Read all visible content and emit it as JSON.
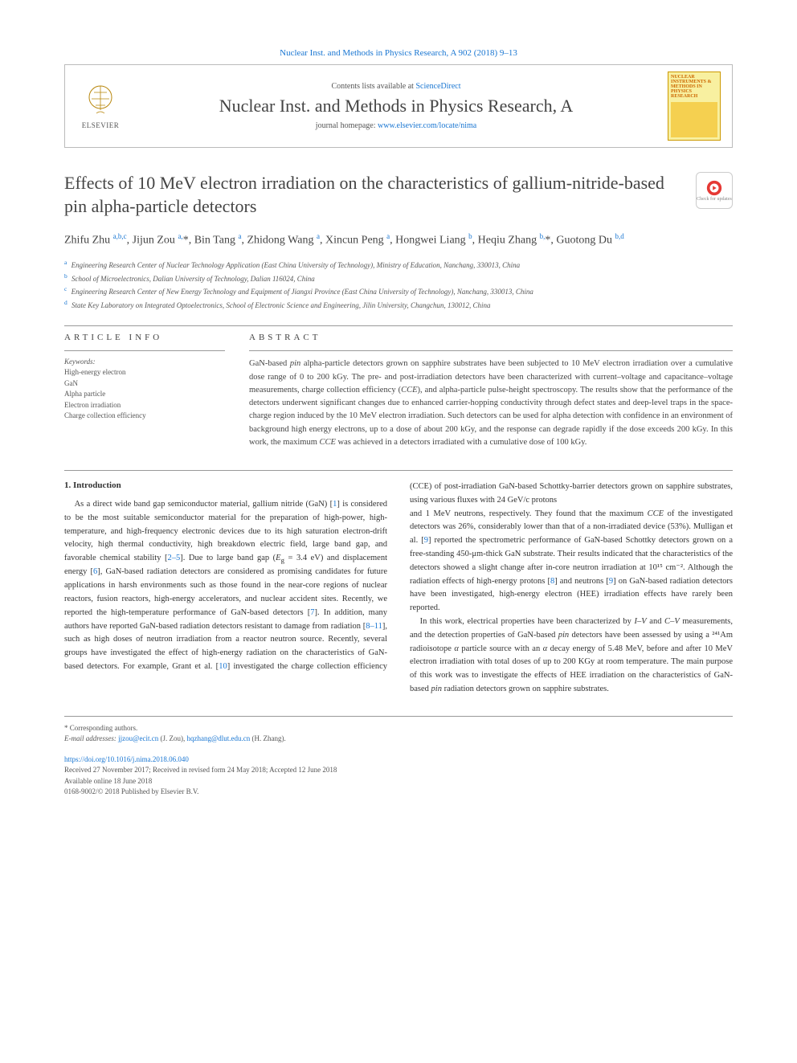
{
  "header": {
    "citation": "Nuclear Inst. and Methods in Physics Research, A 902 (2018) 9–13",
    "contents_prefix": "Contents lists available at ",
    "contents_link": "ScienceDirect",
    "journal_name": "Nuclear Inst. and Methods in Physics Research, A",
    "homepage_prefix": "journal homepage: ",
    "homepage_link": "www.elsevier.com/locate/nima",
    "publisher": "ELSEVIER",
    "cover_label": "NUCLEAR INSTRUMENTS & METHODS IN PHYSICS RESEARCH"
  },
  "title": "Effects of 10 MeV electron irradiation on the characteristics of gallium-nitride-based pin alpha-particle detectors",
  "check_badge": "Check for updates",
  "authors_html": "Zhifu Zhu <sup>a,b,c</sup>, Jijun Zou <sup>a,</sup><span class='ast'>*</span>, Bin Tang <sup>a</sup>, Zhidong Wang <sup>a</sup>, Xincun Peng <sup>a</sup>, Hongwei Liang <sup>b</sup>, Heqiu Zhang <sup>b,</sup><span class='ast'>*</span>, Guotong Du <sup>b,d</sup>",
  "affiliations": [
    {
      "sup": "a",
      "text": "Engineering Research Center of Nuclear Technology Application (East China University of Technology), Ministry of Education, Nanchang, 330013, China"
    },
    {
      "sup": "b",
      "text": "School of Microelectronics, Dalian University of Technology, Dalian 116024, China"
    },
    {
      "sup": "c",
      "text": "Engineering Research Center of New Energy Technology and Equipment of Jiangxi Province (East China University of Technology), Nanchang, 330013, China"
    },
    {
      "sup": "d",
      "text": "State Key Laboratory on Integrated Optoelectronics, School of Electronic Science and Engineering, Jilin University, Changchun, 130012, China"
    }
  ],
  "article_info": {
    "label": "ARTICLE INFO",
    "kw_label": "Keywords:",
    "keywords": [
      "High-energy electron",
      "GaN",
      "Alpha particle",
      "Electron irradiation",
      "Charge collection efficiency"
    ]
  },
  "abstract": {
    "label": "ABSTRACT",
    "text": "GaN-based pin alpha-particle detectors grown on sapphire substrates have been subjected to 10 MeV electron irradiation over a cumulative dose range of 0 to 200 kGy. The pre- and post-irradiation detectors have been characterized with current–voltage and capacitance–voltage measurements, charge collection efficiency (CCE), and alpha-particle pulse-height spectroscopy. The results show that the performance of the detectors underwent significant changes due to enhanced carrier-hopping conductivity through defect states and deep-level traps in the space-charge region induced by the 10 MeV electron irradiation. Such detectors can be used for alpha detection with confidence in an environment of background high energy electrons, up to a dose of about 200 kGy, and the response can degrade rapidly if the dose exceeds 200 kGy. In this work, the maximum CCE was achieved in a detectors irradiated with a cumulative dose of 100 kGy."
  },
  "section1": {
    "heading": "1. Introduction",
    "p1": "As a direct wide band gap semiconductor material, gallium nitride (GaN) [1] is considered to be the most suitable semiconductor material for the preparation of high-power, high-temperature, and high-frequency electronic devices due to its high saturation electron-drift velocity, high thermal conductivity, high breakdown electric field, large band gap, and favorable chemical stability [2–5]. Due to large band gap (Eg = 3.4 eV) and displacement energy [6], GaN-based radiation detectors are considered as promising candidates for future applications in harsh environments such as those found in the near-core regions of nuclear reactors, fusion reactors, high-energy accelerators, and nuclear accident sites. Recently, we reported the high-temperature performance of GaN-based detectors [7]. In addition, many authors have reported GaN-based radiation detectors resistant to damage from radiation [8–11], such as high doses of neutron irradiation from a reactor neutron source. Recently, several groups have investigated the effect of high-energy radiation on the characteristics of GaN-based detectors. For example, Grant et al. [10] investigated the charge collection efficiency (CCE) of post-irradiation GaN-based Schottky-barrier detectors grown on sapphire substrates, using various fluxes with 24 GeV/c protons ",
    "p1b": "and 1 MeV neutrons, respectively. They found that the maximum CCE of the investigated detectors was 26%, considerably lower than that of a non-irradiated device (53%). Mulligan et al. [9] reported the spectrometric performance of GaN-based Schottky detectors grown on a free-standing 450-μm-thick GaN substrate. Their results indicated that the characteristics of the detectors showed a slight change after in-core neutron irradiation at 10¹⁵ cm⁻². Although the radiation effects of high-energy protons [8] and neutrons [9] on GaN-based radiation detectors have been investigated, high-energy electron (HEE) irradiation effects have rarely been reported.",
    "p2": "In this work, electrical properties have been characterized by I–V and C–V measurements, and the detection properties of GaN-based pin detectors have been assessed by using a ²⁴¹Am radioisotope α particle source with an α decay energy of 5.48 MeV, before and after 10 MeV electron irradiation with total doses of up to 200 KGy at room temperature. The main purpose of this work was to investigate the effects of HEE irradiation on the characteristics of GaN-based pin radiation detectors grown on sapphire substrates."
  },
  "footer": {
    "corr_label": "* Corresponding authors.",
    "email_label": "E-mail addresses:",
    "email1": "jjzou@ecit.cn",
    "email1_name": "(J. Zou)",
    "email2": "hqzhang@dlut.edu.cn",
    "email2_name": "(H. Zhang)",
    "doi": "https://doi.org/10.1016/j.nima.2018.06.040",
    "received": "Received 27 November 2017; Received in revised form 24 May 2018; Accepted 12 June 2018",
    "available": "Available online 18 June 2018",
    "copyright": "0168-9002/© 2018 Published by Elsevier B.V."
  },
  "colors": {
    "link": "#1976d2",
    "text": "#333333",
    "muted": "#555555",
    "border": "#999999",
    "cover_bg": "#f8f0a0",
    "cover_border": "#cc9900"
  }
}
